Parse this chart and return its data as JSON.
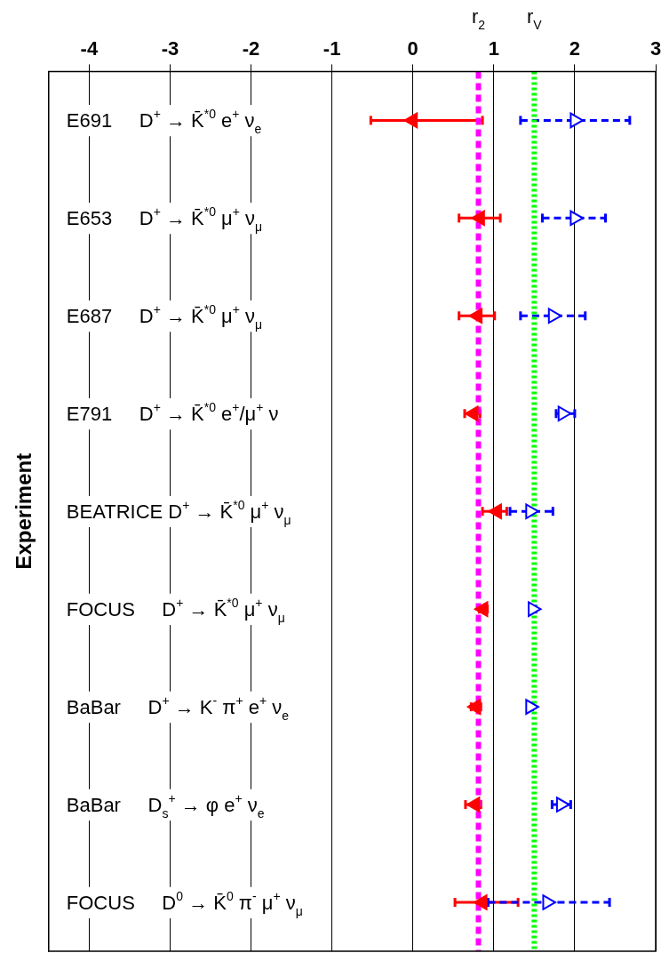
{
  "chart_data": {
    "type": "scatter",
    "orientation": "horizontal",
    "ylabel": "Experiment",
    "categories": [
      "E691     D$^{+}$ → K̄$^{*0}$ e$^{+}$ ν$_{e}$",
      "E653     D$^{+}$ → K̄$^{*0}$ μ$^{+}$ ν$_{μ}$",
      "E687     D$^{+}$ → K̄$^{*0}$ μ$^{+}$ ν$_{μ}$",
      "E791     D$^{+}$ → K̄$^{*0}$ e$^{+}$/μ$^{+}$ ν",
      "BEATRICE D$^{+}$ → K̄$^{*0}$ μ$^{+}$ ν$_{μ}$",
      "FOCUS     D$^{+}$ → K̄$^{*0}$ μ$^{+}$ ν$_{μ}$",
      "BaBar     D$^{+}$ → K$^{-}$ π$^{+}$ e$^{+}$ ν$_{e}$",
      "BaBar     D$_{s}$$^{+}$ → φ e$^{+}$ ν$_{e}$",
      "FOCUS     D$^{0}$ → K̄$^{0}$ π$^{-}$ μ$^{+}$ ν$_{μ}$"
    ],
    "series": [
      {
        "color": "#ff0000",
        "line_style": "solid",
        "values": [
          0.0,
          0.83,
          0.8,
          0.75,
          1.04,
          0.87,
          0.78,
          0.77,
          0.86
        ],
        "errors": [
          [
            -0.52,
            0.86
          ],
          [
            0.57,
            1.08
          ],
          [
            0.57,
            1.01
          ],
          [
            0.64,
            0.83
          ],
          [
            0.86,
            1.16
          ],
          [
            0.82,
            0.92
          ],
          [
            0.72,
            0.84
          ],
          [
            0.65,
            0.84
          ],
          [
            0.52,
            1.3
          ]
        ]
      },
      {
        "color": "#0000ff",
        "line_style": "dashed",
        "values": [
          2.0,
          2.0,
          1.73,
          1.85,
          1.45,
          1.48,
          1.45,
          1.83,
          1.66
        ],
        "errors": [
          [
            1.33,
            2.68
          ],
          [
            1.6,
            2.38
          ],
          [
            1.33,
            2.13
          ],
          [
            1.77,
            2.0
          ],
          [
            1.2,
            1.73
          ],
          [
            1.45,
            1.52
          ],
          [
            1.42,
            1.48
          ],
          [
            1.72,
            1.95
          ],
          [
            0.93,
            2.43
          ]
        ]
      }
    ],
    "xlim": [
      -4.5,
      3
    ],
    "xticks": [
      -4,
      -3,
      -2,
      -1,
      0,
      1,
      2,
      3
    ],
    "grid": "x",
    "marker": "triangle",
    "ref_lines": [
      {
        "axis": "x",
        "value": 0.81,
        "label": "r$_{2}$",
        "color": "#ff00ff",
        "line_style": "dashed"
      },
      {
        "axis": "x",
        "value": 1.5,
        "label": "r$_{V}$",
        "color": "#00ff00",
        "line_style": "dotted"
      }
    ]
  }
}
